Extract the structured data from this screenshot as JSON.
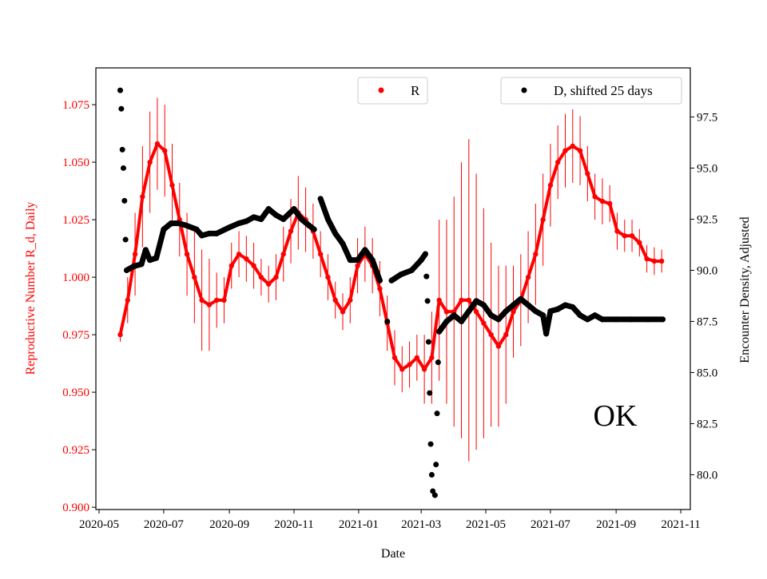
{
  "chart_data": {
    "type": "scatter",
    "xlabel": "Date",
    "ylabel_left": "Reproductive Number R_d, Daily",
    "ylabel_right": "Encounter Density, Adjusted",
    "annotation": "OK",
    "xlim": [
      "2020-04-28",
      "2021-11-10"
    ],
    "ylim_left": [
      0.899,
      1.091
    ],
    "ylim_right": [
      78.3,
      99.9
    ],
    "x_ticks": [
      "2020-05",
      "2020-07",
      "2020-09",
      "2020-11",
      "2021-01",
      "2021-03",
      "2021-05",
      "2021-07",
      "2021-09",
      "2021-11"
    ],
    "y_ticks_left": [
      "0.900",
      "0.925",
      "0.950",
      "0.975",
      "1.000",
      "1.025",
      "1.050",
      "1.075"
    ],
    "y_ticks_right": [
      "80.0",
      "82.5",
      "85.0",
      "87.5",
      "90.0",
      "92.5",
      "95.0",
      "97.5"
    ],
    "grid": false,
    "colors": {
      "R": "#ff0000",
      "D": "#000000",
      "left_axis_text": "#ff0000"
    },
    "legends": [
      {
        "label": "R",
        "placement": "upper-center"
      },
      {
        "label": "D, shifted 25 days",
        "placement": "upper-right"
      }
    ],
    "series": [
      {
        "name": "R",
        "axis": "left",
        "with_error_bars": true,
        "dates": [
          "2020-05-21",
          "2020-05-28",
          "2020-06-04",
          "2020-06-11",
          "2020-06-18",
          "2020-06-25",
          "2020-07-02",
          "2020-07-09",
          "2020-07-16",
          "2020-07-23",
          "2020-07-30",
          "2020-08-06",
          "2020-08-13",
          "2020-08-20",
          "2020-08-27",
          "2020-09-03",
          "2020-09-10",
          "2020-09-17",
          "2020-09-24",
          "2020-10-01",
          "2020-10-08",
          "2020-10-15",
          "2020-10-22",
          "2020-10-29",
          "2020-11-05",
          "2020-11-12",
          "2020-11-19",
          "2020-11-26",
          "2020-12-03",
          "2020-12-10",
          "2020-12-17",
          "2020-12-24",
          "2020-12-31",
          "2021-01-07",
          "2021-01-14",
          "2021-01-21",
          "2021-01-28",
          "2021-02-04",
          "2021-02-11",
          "2021-02-18",
          "2021-02-25",
          "2021-03-04",
          "2021-03-11",
          "2021-03-18",
          "2021-03-25",
          "2021-04-01",
          "2021-04-08",
          "2021-04-15",
          "2021-04-22",
          "2021-04-29",
          "2021-05-06",
          "2021-05-13",
          "2021-05-20",
          "2021-05-27",
          "2021-06-03",
          "2021-06-10",
          "2021-06-17",
          "2021-06-24",
          "2021-07-01",
          "2021-07-08",
          "2021-07-15",
          "2021-07-22",
          "2021-07-29",
          "2021-08-05",
          "2021-08-12",
          "2021-08-19",
          "2021-08-26",
          "2021-09-02",
          "2021-09-09",
          "2021-09-16",
          "2021-09-23",
          "2021-09-30",
          "2021-10-07",
          "2021-10-14"
        ],
        "values": [
          0.975,
          0.99,
          1.01,
          1.035,
          1.05,
          1.058,
          1.055,
          1.04,
          1.025,
          1.01,
          1.0,
          0.99,
          0.988,
          0.99,
          0.99,
          1.005,
          1.01,
          1.008,
          1.005,
          1.0,
          0.997,
          1.0,
          1.01,
          1.02,
          1.028,
          1.025,
          1.02,
          1.01,
          1.0,
          0.99,
          0.985,
          0.99,
          1.005,
          1.01,
          1.005,
          0.995,
          0.98,
          0.965,
          0.96,
          0.962,
          0.965,
          0.96,
          0.965,
          0.99,
          0.985,
          0.985,
          0.99,
          0.99,
          0.985,
          0.98,
          0.975,
          0.97,
          0.975,
          0.985,
          0.99,
          1.0,
          1.01,
          1.025,
          1.04,
          1.05,
          1.055,
          1.057,
          1.055,
          1.045,
          1.035,
          1.033,
          1.032,
          1.02,
          1.018,
          1.018,
          1.015,
          1.008,
          1.007,
          1.007
        ],
        "errors": [
          0.003,
          0.01,
          0.018,
          0.022,
          0.022,
          0.02,
          0.02,
          0.018,
          0.016,
          0.018,
          0.02,
          0.022,
          0.02,
          0.012,
          0.01,
          0.01,
          0.01,
          0.01,
          0.01,
          0.008,
          0.008,
          0.01,
          0.012,
          0.014,
          0.016,
          0.014,
          0.012,
          0.01,
          0.01,
          0.008,
          0.008,
          0.01,
          0.012,
          0.012,
          0.012,
          0.012,
          0.012,
          0.012,
          0.01,
          0.01,
          0.01,
          0.015,
          0.02,
          0.035,
          0.04,
          0.05,
          0.06,
          0.07,
          0.06,
          0.05,
          0.04,
          0.035,
          0.03,
          0.02,
          0.02,
          0.02,
          0.022,
          0.02,
          0.018,
          0.016,
          0.016,
          0.016,
          0.015,
          0.012,
          0.01,
          0.01,
          0.008,
          0.008,
          0.007,
          0.007,
          0.006,
          0.006,
          0.006,
          0.005
        ]
      },
      {
        "name": "D, shifted 25 days",
        "axis": "right",
        "with_error_bars": false,
        "dates": [
          "2020-05-21",
          "2020-05-22",
          "2020-05-23",
          "2020-05-24",
          "2020-05-25",
          "2020-05-26",
          "2020-05-27",
          "2020-06-03",
          "2020-06-10",
          "2020-06-14",
          "2020-06-18",
          "2020-06-24",
          "2020-07-01",
          "2020-07-08",
          "2020-07-15",
          "2020-07-22",
          "2020-08-01",
          "2020-08-06",
          "2020-08-13",
          "2020-08-20",
          "2020-09-01",
          "2020-09-10",
          "2020-09-17",
          "2020-09-24",
          "2020-10-01",
          "2020-10-08",
          "2020-10-15",
          "2020-10-22",
          "2020-11-01",
          "2020-11-08",
          "2020-11-15",
          "2020-11-20",
          "2020-11-26",
          "2020-12-03",
          "2020-12-10",
          "2020-12-17",
          "2020-12-24",
          "2020-12-31",
          "2021-01-07",
          "2021-01-14",
          "2021-01-21",
          "2021-01-28",
          "2021-02-01",
          "2021-02-10",
          "2021-02-20",
          "2021-03-01",
          "2021-03-05",
          "2021-03-06",
          "2021-03-07",
          "2021-03-08",
          "2021-03-09",
          "2021-03-10",
          "2021-03-11",
          "2021-03-12",
          "2021-03-14",
          "2021-03-15",
          "2021-03-16",
          "2021-03-17",
          "2021-03-18",
          "2021-03-25",
          "2021-04-01",
          "2021-04-08",
          "2021-04-15",
          "2021-04-22",
          "2021-04-29",
          "2021-05-06",
          "2021-05-13",
          "2021-05-20",
          "2021-05-27",
          "2021-06-03",
          "2021-06-10",
          "2021-06-17",
          "2021-06-24",
          "2021-06-27",
          "2021-07-01",
          "2021-07-08",
          "2021-07-15",
          "2021-07-22",
          "2021-07-29",
          "2021-08-05",
          "2021-08-12",
          "2021-08-19",
          "2021-09-01",
          "2021-09-15",
          "2021-10-01",
          "2021-10-15"
        ],
        "values": [
          98.8,
          97.9,
          95.9,
          95.0,
          93.4,
          91.5,
          90.0,
          90.2,
          90.3,
          91.0,
          90.5,
          90.6,
          92.0,
          92.3,
          92.3,
          92.2,
          92.0,
          91.7,
          91.8,
          91.8,
          92.1,
          92.3,
          92.4,
          92.6,
          92.5,
          93.0,
          92.7,
          92.5,
          93.0,
          92.5,
          92.2,
          92.0,
          93.5,
          92.5,
          91.8,
          91.3,
          90.5,
          90.5,
          91.0,
          90.5,
          89.5,
          87.5,
          89.5,
          89.8,
          90.0,
          90.5,
          90.8,
          89.7,
          88.5,
          86.5,
          84.0,
          81.5,
          80.0,
          79.2,
          79.0,
          80.5,
          83.0,
          85.5,
          87.0,
          87.5,
          87.8,
          87.5,
          88.0,
          88.5,
          88.3,
          87.8,
          87.6,
          88.0,
          88.3,
          88.6,
          88.3,
          88.0,
          87.8,
          86.9,
          88.0,
          88.1,
          88.3,
          88.2,
          87.8,
          87.6,
          87.8,
          87.6,
          87.6,
          87.6,
          87.6,
          87.6
        ]
      }
    ]
  }
}
